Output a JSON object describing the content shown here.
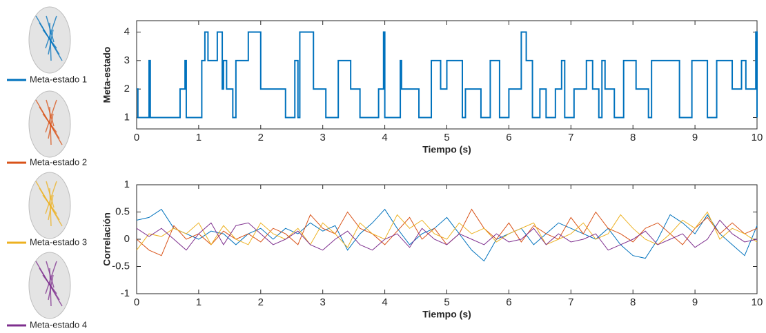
{
  "chart_data": [
    {
      "type": "step",
      "ylabel": "Meta-estado",
      "xlabel": "Tiempo (s)",
      "color": "#0072bd",
      "x": [
        0,
        0.02,
        0.2,
        0.22,
        0.7,
        0.78,
        0.8,
        1.05,
        1.1,
        1.15,
        1.3,
        1.38,
        1.4,
        1.45,
        1.55,
        1.6,
        1.8,
        2.0,
        2.4,
        2.55,
        2.6,
        2.63,
        2.85,
        3.05,
        3.25,
        3.45,
        3.6,
        3.9,
        3.98,
        4.0,
        4.25,
        4.27,
        4.55,
        4.75,
        4.9,
        5.0,
        5.25,
        5.3,
        5.55,
        5.7,
        5.85,
        6.0,
        6.2,
        6.28,
        6.38,
        6.5,
        6.6,
        6.75,
        6.85,
        6.9,
        7.05,
        7.25,
        7.35,
        7.45,
        7.5,
        7.55,
        7.7,
        7.85,
        8.05,
        8.25,
        8.3,
        8.75,
        8.95,
        9.2,
        9.35,
        9.6,
        9.75,
        9.82,
        9.98,
        10
      ],
      "values": [
        2,
        1,
        3,
        1,
        2,
        3,
        1,
        3,
        4,
        3,
        4,
        2,
        3,
        2,
        1,
        3,
        4,
        2,
        1,
        3,
        1,
        4,
        2,
        1,
        3,
        2,
        1,
        2,
        4,
        1,
        3,
        2,
        1,
        3,
        2,
        3,
        1,
        2,
        1,
        3,
        1,
        2,
        4,
        3,
        1,
        2,
        1,
        2,
        3,
        1,
        2,
        3,
        2,
        1,
        3,
        2,
        1,
        3,
        2,
        1,
        3,
        1,
        3,
        1,
        3,
        2,
        3,
        2,
        4,
        1
      ],
      "xlim": [
        0,
        10
      ],
      "xticks": [
        0,
        1,
        2,
        3,
        4,
        5,
        6,
        7,
        8,
        9,
        10
      ],
      "ylim": [
        0.6,
        4.4
      ],
      "yticks": [
        1,
        2,
        3,
        4
      ]
    },
    {
      "type": "line",
      "ylabel": "Correlación",
      "xlabel": "Tiempo (s)",
      "x": [
        0,
        0.2,
        0.4,
        0.6,
        0.8,
        1,
        1.2,
        1.4,
        1.6,
        1.8,
        2,
        2.2,
        2.4,
        2.6,
        2.8,
        3,
        3.2,
        3.4,
        3.6,
        3.8,
        4,
        4.2,
        4.4,
        4.6,
        4.8,
        5,
        5.2,
        5.4,
        5.6,
        5.8,
        6,
        6.2,
        6.4,
        6.6,
        6.8,
        7,
        7.2,
        7.4,
        7.6,
        7.8,
        8,
        8.2,
        8.4,
        8.6,
        8.8,
        9,
        9.2,
        9.4,
        9.6,
        9.8,
        10
      ],
      "series": [
        {
          "name": "Meta-estado 1",
          "color": "#0072bd",
          "values": [
            0.35,
            0.4,
            0.55,
            0.2,
            0.1,
            0.0,
            0.15,
            0.1,
            -0.1,
            0.1,
            0.2,
            0.0,
            0.2,
            0.1,
            0.3,
            0.15,
            0.25,
            -0.2,
            0.1,
            0.3,
            0.55,
            0.2,
            -0.1,
            0.1,
            0.2,
            0.4,
            0.1,
            -0.2,
            -0.4,
            0.0,
            0.1,
            0.2,
            -0.1,
            0.1,
            0.3,
            0.2,
            0.1,
            0.0,
            0.2,
            -0.1,
            -0.3,
            -0.35,
            0.0,
            0.45,
            0.3,
            0.1,
            0.45,
            0.1,
            -0.1,
            -0.3,
            0.25
          ]
        },
        {
          "name": "Meta-estado 2",
          "color": "#d95319",
          "values": [
            0.0,
            -0.2,
            -0.3,
            0.25,
            0.0,
            0.1,
            -0.1,
            0.15,
            0.0,
            0.1,
            -0.05,
            0.2,
            0.1,
            -0.1,
            0.45,
            0.2,
            0.1,
            0.5,
            0.2,
            0.1,
            -0.1,
            0.15,
            0.4,
            0.0,
            0.2,
            -0.1,
            0.1,
            0.55,
            0.2,
            0.0,
            0.3,
            -0.05,
            0.25,
            0.1,
            0.0,
            0.4,
            0.1,
            0.5,
            0.2,
            0.1,
            -0.05,
            0.2,
            0.3,
            0.1,
            -0.1,
            0.2,
            0.4,
            0.1,
            0.3,
            0.1,
            0.2
          ]
        },
        {
          "name": "Meta-estado 3",
          "color": "#edb120",
          "values": [
            -0.2,
            0.1,
            0.05,
            0.2,
            0.1,
            0.3,
            -0.1,
            0.25,
            0.0,
            -0.1,
            0.3,
            0.1,
            0.0,
            0.2,
            -0.1,
            0.3,
            0.1,
            -0.15,
            0.3,
            0.1,
            0.0,
            0.45,
            0.2,
            0.35,
            0.1,
            0.0,
            0.3,
            0.1,
            0.2,
            -0.05,
            0.1,
            0.2,
            0.3,
            -0.1,
            0.0,
            0.1,
            0.3,
            0.0,
            0.1,
            0.45,
            0.2,
            0.0,
            -0.1,
            0.1,
            0.35,
            0.2,
            0.5,
            0.0,
            0.2,
            0.1,
            -0.05
          ]
        },
        {
          "name": "Meta-estado 4",
          "color": "#7e2f8e",
          "values": [
            0.2,
            0.05,
            0.2,
            0.0,
            -0.2,
            0.1,
            0.3,
            -0.1,
            0.25,
            0.3,
            0.1,
            -0.1,
            0.0,
            0.15,
            -0.1,
            -0.2,
            0.0,
            0.15,
            -0.1,
            -0.2,
            0.0,
            0.1,
            -0.15,
            0.2,
            0.0,
            -0.1,
            0.1,
            0.0,
            -0.1,
            0.1,
            -0.05,
            0.0,
            0.2,
            -0.1,
            0.1,
            -0.05,
            0.0,
            0.1,
            -0.2,
            -0.1,
            0.0,
            0.15,
            -0.1,
            0.0,
            0.1,
            -0.15,
            0.0,
            0.35,
            0.1,
            -0.05,
            0.0
          ]
        }
      ],
      "xlim": [
        0,
        10
      ],
      "xticks": [
        0,
        1,
        2,
        3,
        4,
        5,
        6,
        7,
        8,
        9,
        10
      ],
      "ylim": [
        -1,
        1
      ],
      "yticks": [
        -1,
        -0.5,
        0,
        0.5,
        1
      ]
    }
  ]
}
